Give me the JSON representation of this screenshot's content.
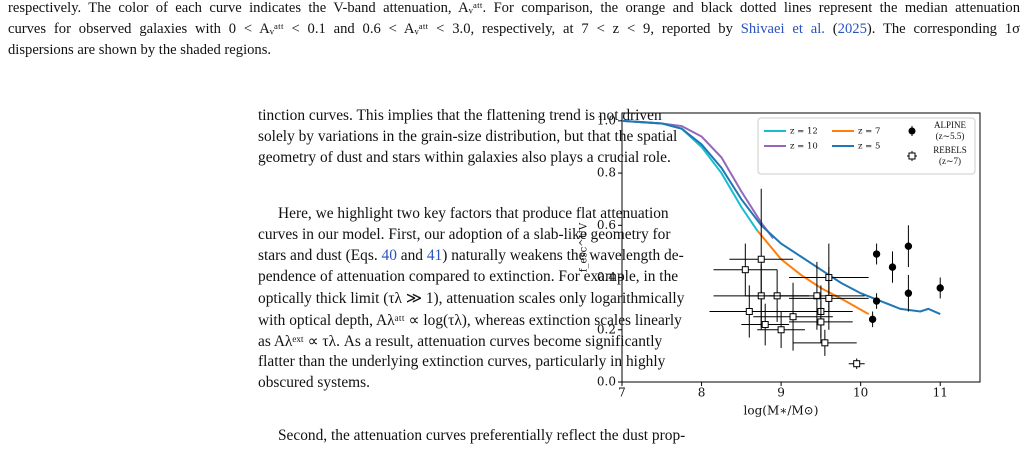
{
  "caption": {
    "lines": [
      [
        "respectively. The color of each curve indicates the V-band attenuation, Aᵥᵃᵗᵗ. For comparison, the orange and black dotted lines represent the median attenuation"
      ],
      [
        "curves for observed galaxies with 0 < Aᵥᵃᵗᵗ < 0.1 and 0.6 < Aᵥᵃᵗᵗ < 3.0, respectively, at 7 < z < 9, reported by ",
        "Shivaei et al.",
        " (",
        "2025",
        "). The corresponding 1σ"
      ],
      [
        "dispersions are shown by the shaded regions."
      ]
    ]
  },
  "body": {
    "paragraphs": [
      [
        [
          "tinction curves. This implies that the flattening trend is not driven"
        ],
        [
          "solely by variations in the grain-size distribution, but that the spatial"
        ],
        [
          "geometry of dust and stars within galaxies also plays a crucial role."
        ]
      ],
      [
        [
          "Here, we highlight two key factors that produce flat attenuation"
        ],
        [
          "curves in our model. First, our adoption of a slab-like geometry for"
        ],
        [
          "stars and dust (Eqs. ",
          "40",
          " and ",
          "41",
          ") naturally weakens the wavelength de-"
        ],
        [
          "pendence of attenuation compared to extinction. For example, in the"
        ],
        [
          "optically thick limit (τλ ≫ 1), attenuation scales only logarithmically"
        ],
        [
          "with optical depth, Aλᵃᵗᵗ ∝ log(τλ), whereas extinction scales linearly"
        ],
        [
          "as Aλᵉˣᵗ ∝ τλ. As a result, attenuation curves become significantly"
        ],
        [
          "flatter than the underlying extinction curves, particularly in highly"
        ],
        [
          "obscured systems."
        ]
      ],
      [
        [
          "Second, the attenuation curves preferentially reflect the dust prop-"
        ]
      ]
    ]
  },
  "chart_data": {
    "type": "line",
    "xlabel": "log(M∗/M⊙)",
    "ylabel": "f_esc^UV",
    "xlim": [
      7,
      11.5
    ],
    "ylim": [
      0,
      1.03
    ],
    "xticks": [
      7,
      8,
      9,
      10,
      11
    ],
    "yticks": [
      {
        "value": 0,
        "label": "0.0"
      },
      0.2,
      0.4,
      0.6,
      0.8,
      {
        "value": 1,
        "label": "1.0"
      }
    ],
    "series": [
      {
        "name": "z = 12",
        "color": "#17becf",
        "x": [
          7,
          7.5,
          7.75,
          8,
          8.25,
          8.5,
          8.7
        ],
        "values": [
          1.0,
          0.99,
          0.97,
          0.9,
          0.8,
          0.67,
          0.58
        ]
      },
      {
        "name": "z = 10",
        "color": "#9467bd",
        "x": [
          7,
          7.5,
          7.75,
          8,
          8.25,
          8.5,
          8.75,
          8.9
        ],
        "values": [
          1.0,
          0.99,
          0.98,
          0.94,
          0.86,
          0.73,
          0.61,
          0.55
        ]
      },
      {
        "name": "z = 7",
        "color": "#ff7f0e",
        "x": [
          8.7,
          9,
          9.25,
          9.5,
          9.75,
          10.1
        ],
        "values": [
          0.58,
          0.47,
          0.41,
          0.36,
          0.32,
          0.26
        ]
      },
      {
        "name": "z = 5",
        "color": "#1f77b4",
        "x": [
          7,
          7.5,
          7.75,
          8,
          8.25,
          8.5,
          8.75,
          9,
          9.25,
          9.5,
          9.75,
          10,
          10.25,
          10.5,
          10.75,
          10.85,
          11
        ],
        "values": [
          1.0,
          0.99,
          0.97,
          0.91,
          0.82,
          0.7,
          0.6,
          0.53,
          0.48,
          0.43,
          0.38,
          0.34,
          0.31,
          0.28,
          0.27,
          0.28,
          0.26
        ]
      }
    ],
    "observations": [
      {
        "name": "ALPINE (z∼5.5)",
        "marker": "circle",
        "filled": true,
        "color": "#000000",
        "x": [
          10.2,
          10.4,
          10.15,
          10.2,
          10.6,
          10.6,
          11.0
        ],
        "values": [
          0.49,
          0.44,
          0.24,
          0.31,
          0.52,
          0.34,
          0.36
        ],
        "yerr": [
          0.04,
          0.06,
          0.03,
          0.03,
          0.08,
          0.07,
          0.04
        ]
      },
      {
        "name": "REBELS (z∼7)",
        "marker": "square",
        "filled": false,
        "color": "#000000",
        "x": [
          8.55,
          8.75,
          8.75,
          8.95,
          8.6,
          8.8,
          9.0,
          9.15,
          9.45,
          9.5,
          9.5,
          9.6,
          9.55,
          9.6,
          9.95
        ],
        "values": [
          0.43,
          0.47,
          0.33,
          0.33,
          0.27,
          0.22,
          0.2,
          0.25,
          0.33,
          0.27,
          0.23,
          0.4,
          0.15,
          0.32,
          0.07
        ],
        "xerr": [
          0.4,
          0.4,
          0.6,
          0.4,
          0.5,
          0.3,
          0.3,
          0.5,
          0.6,
          0.4,
          0.4,
          0.5,
          0.4,
          0.5,
          0.1
        ],
        "yerr": [
          0.1,
          0.27,
          0.12,
          0.1,
          0.1,
          0.08,
          0.07,
          0.13,
          0.13,
          0.1,
          0.08,
          0.13,
          0.05,
          0.12,
          0.02
        ]
      }
    ]
  }
}
